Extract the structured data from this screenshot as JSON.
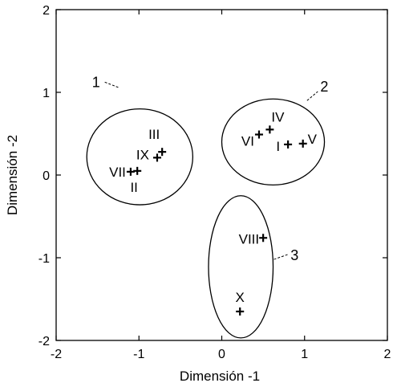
{
  "chart_data": {
    "type": "scatter",
    "xlabel": "Dimensión -1",
    "ylabel": "Dimensión -2",
    "xlim": [
      -2,
      2
    ],
    "ylim": [
      -2,
      2
    ],
    "xticks": [
      "-2",
      "-1",
      "0",
      "1",
      "2"
    ],
    "yticks": [
      "2",
      "1",
      "0",
      "-1",
      "-2"
    ],
    "grid": false,
    "points": [
      {
        "label": "I",
        "x": 0.8,
        "y": 0.37
      },
      {
        "label": "II",
        "x": -1.02,
        "y": 0.05
      },
      {
        "label": "III",
        "x": -0.72,
        "y": 0.28
      },
      {
        "label": "IV",
        "x": 0.58,
        "y": 0.55
      },
      {
        "label": "V",
        "x": 0.98,
        "y": 0.38
      },
      {
        "label": "VI",
        "x": 0.45,
        "y": 0.49
      },
      {
        "label": "VII",
        "x": -1.1,
        "y": 0.04
      },
      {
        "label": "VIII",
        "x": 0.5,
        "y": -0.76
      },
      {
        "label": "IX",
        "x": -0.78,
        "y": 0.21
      },
      {
        "label": "X",
        "x": 0.22,
        "y": -1.65
      }
    ],
    "clusters": [
      {
        "label": "1",
        "members": [
          "II",
          "III",
          "VII",
          "IX"
        ]
      },
      {
        "label": "2",
        "members": [
          "I",
          "IV",
          "V",
          "VI"
        ]
      },
      {
        "label": "3",
        "members": [
          "VIII",
          "X"
        ]
      }
    ]
  }
}
